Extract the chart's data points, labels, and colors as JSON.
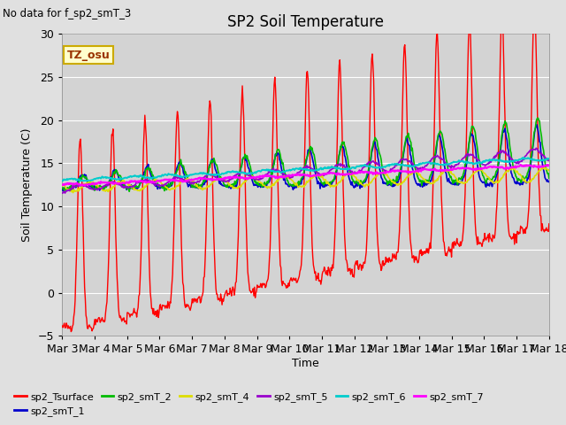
{
  "title": "SP2 Soil Temperature",
  "ylabel": "Soil Temperature (C)",
  "xlabel": "Time",
  "no_data_text": "No data for f_sp2_smT_3",
  "tz_label": "TZ_osu",
  "ylim": [
    -5,
    30
  ],
  "x_tick_labels": [
    "Mar 3",
    "Mar 4",
    "Mar 5",
    "Mar 6",
    "Mar 7",
    "Mar 8",
    "Mar 9",
    "Mar 10",
    "Mar 11",
    "Mar 12",
    "Mar 13",
    "Mar 14",
    "Mar 15",
    "Mar 16",
    "Mar 17",
    "Mar 18"
  ],
  "legend_entries": [
    {
      "label": "sp2_Tsurface",
      "color": "#ff0000"
    },
    {
      "label": "sp2_smT_1",
      "color": "#0000cc"
    },
    {
      "label": "sp2_smT_2",
      "color": "#00bb00"
    },
    {
      "label": "sp2_smT_4",
      "color": "#dddd00"
    },
    {
      "label": "sp2_smT_5",
      "color": "#9900cc"
    },
    {
      "label": "sp2_smT_6",
      "color": "#00cccc"
    },
    {
      "label": "sp2_smT_7",
      "color": "#ff00ff"
    }
  ],
  "background_color": "#e0e0e0",
  "plot_bg_color": "#d3d3d3",
  "grid_color": "#ffffff",
  "n_days": 15,
  "pts_per_day": 48,
  "yticks": [
    -5,
    0,
    5,
    10,
    15,
    20,
    25,
    30
  ]
}
